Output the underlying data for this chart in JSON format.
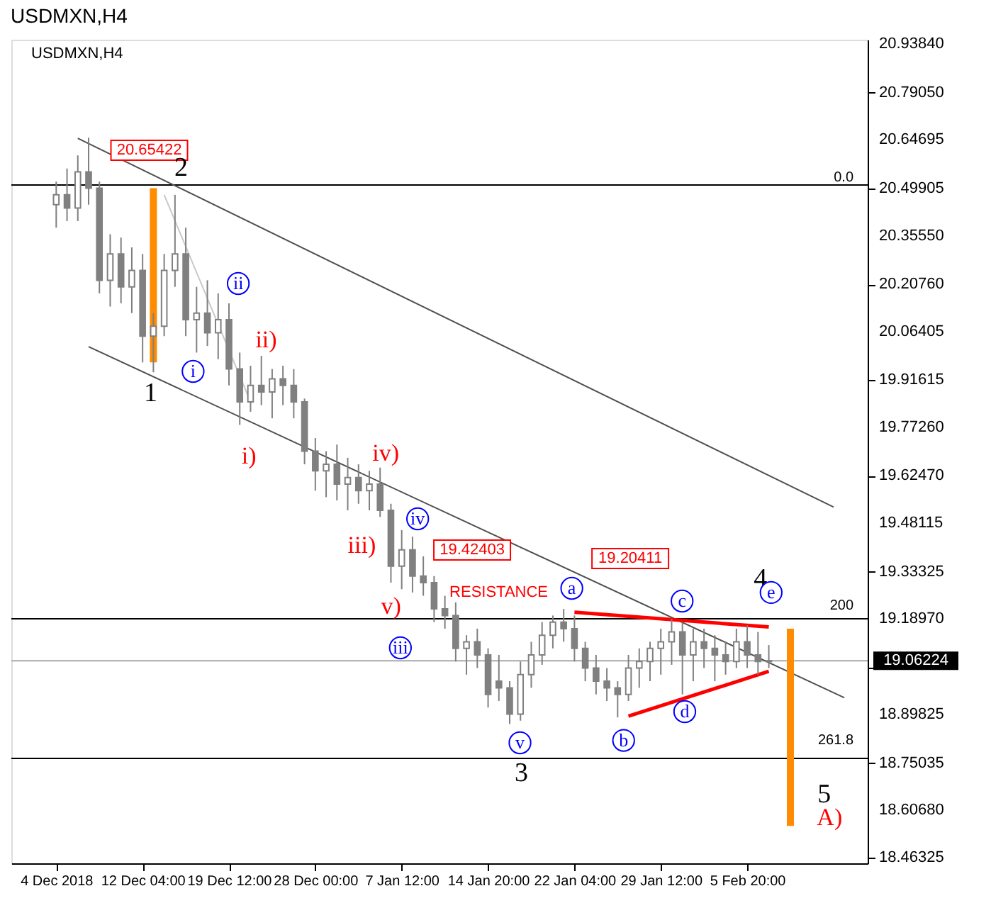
{
  "chart_data": {
    "type": "candlestick",
    "title": "USDMXN,H4",
    "subtitle": "USDMXN,H4",
    "color": "#808080",
    "categories": [
      "4 Dec 2018",
      null,
      null,
      null,
      null,
      null,
      null,
      null,
      "12 Dec 04:00",
      null,
      null,
      null,
      null,
      null,
      null,
      null,
      "19 Dec 12:00",
      null,
      null,
      null,
      null,
      null,
      null,
      null,
      "28 Dec 00:00",
      null,
      null,
      null,
      null,
      null,
      null,
      null,
      "7 Jan 12:00",
      null,
      null,
      null,
      null,
      null,
      null,
      null,
      "14 Jan 20:00",
      null,
      null,
      null,
      null,
      null,
      null,
      null,
      "22 Jan 04:00",
      null,
      null,
      null,
      null,
      null,
      null,
      null,
      "29 Jan 12:00",
      null,
      null,
      null,
      null,
      null,
      null,
      null,
      "5 Feb 20:00",
      null,
      null,
      null,
      null,
      null,
      null,
      null,
      null,
      null,
      null
    ],
    "ohlc": [
      [
        20.45,
        20.52,
        20.38,
        20.48
      ],
      [
        20.48,
        20.56,
        20.4,
        20.44
      ],
      [
        20.44,
        20.6,
        20.4,
        20.55
      ],
      [
        20.55,
        20.654,
        20.45,
        20.5
      ],
      [
        20.5,
        20.52,
        20.18,
        20.22
      ],
      [
        20.22,
        20.36,
        20.14,
        20.3
      ],
      [
        20.3,
        20.35,
        20.15,
        20.2
      ],
      [
        20.2,
        20.32,
        20.12,
        20.25
      ],
      [
        20.25,
        20.3,
        19.97,
        20.05
      ],
      [
        20.05,
        20.12,
        19.94,
        20.08
      ],
      [
        20.08,
        20.3,
        20.05,
        20.25
      ],
      [
        20.25,
        20.48,
        20.2,
        20.3
      ],
      [
        20.3,
        20.38,
        20.05,
        20.1
      ],
      [
        20.1,
        20.2,
        20.0,
        20.12
      ],
      [
        20.12,
        20.22,
        20.02,
        20.06
      ],
      [
        20.06,
        20.18,
        19.98,
        20.1
      ],
      [
        20.1,
        20.15,
        19.9,
        19.95
      ],
      [
        19.95,
        20.0,
        19.78,
        19.85
      ],
      [
        19.85,
        19.96,
        19.82,
        19.9
      ],
      [
        19.9,
        19.99,
        19.84,
        19.88
      ],
      [
        19.88,
        19.95,
        19.8,
        19.92
      ],
      [
        19.92,
        19.96,
        19.84,
        19.9
      ],
      [
        19.9,
        19.95,
        19.8,
        19.85
      ],
      [
        19.85,
        19.86,
        19.66,
        19.7
      ],
      [
        19.7,
        19.74,
        19.58,
        19.64
      ],
      [
        19.64,
        19.7,
        19.56,
        19.66
      ],
      [
        19.66,
        19.72,
        19.55,
        19.6
      ],
      [
        19.6,
        19.68,
        19.52,
        19.62
      ],
      [
        19.62,
        19.66,
        19.54,
        19.58
      ],
      [
        19.58,
        19.64,
        19.52,
        19.6
      ],
      [
        19.6,
        19.65,
        19.5,
        19.52
      ],
      [
        19.52,
        19.54,
        19.3,
        19.35
      ],
      [
        19.35,
        19.46,
        19.28,
        19.4
      ],
      [
        19.4,
        19.44,
        19.27,
        19.32
      ],
      [
        19.32,
        19.38,
        19.26,
        19.3
      ],
      [
        19.3,
        19.32,
        19.18,
        19.22
      ],
      [
        19.22,
        19.26,
        19.16,
        19.2
      ],
      [
        19.2,
        19.24,
        19.06,
        19.1
      ],
      [
        19.1,
        19.14,
        19.02,
        19.12
      ],
      [
        19.12,
        19.16,
        19.04,
        19.08
      ],
      [
        19.08,
        19.1,
        18.92,
        18.96
      ],
      [
        19.0,
        19.08,
        18.94,
        18.98
      ],
      [
        18.98,
        19.0,
        18.87,
        18.9
      ],
      [
        18.9,
        19.06,
        18.88,
        19.02
      ],
      [
        19.02,
        19.12,
        18.98,
        19.08
      ],
      [
        19.08,
        19.18,
        19.05,
        19.14
      ],
      [
        19.14,
        19.2,
        19.1,
        19.18
      ],
      [
        19.18,
        19.22,
        19.12,
        19.16
      ],
      [
        19.16,
        19.2,
        19.06,
        19.1
      ],
      [
        19.1,
        19.12,
        19.0,
        19.04
      ],
      [
        19.04,
        19.08,
        18.96,
        19.0
      ],
      [
        19.0,
        19.04,
        18.94,
        18.98
      ],
      [
        18.98,
        19.0,
        18.89,
        18.96
      ],
      [
        18.96,
        19.08,
        18.94,
        19.04
      ],
      [
        19.04,
        19.1,
        18.98,
        19.06
      ],
      [
        19.06,
        19.12,
        19.0,
        19.1
      ],
      [
        19.1,
        19.16,
        19.02,
        19.12
      ],
      [
        19.12,
        19.19,
        19.05,
        19.15
      ],
      [
        19.15,
        19.18,
        18.96,
        19.08
      ],
      [
        19.08,
        19.16,
        19.0,
        19.12
      ],
      [
        19.12,
        19.16,
        19.04,
        19.1
      ],
      [
        19.1,
        19.14,
        19.0,
        19.08
      ],
      [
        19.08,
        19.12,
        19.02,
        19.06
      ],
      [
        19.06,
        19.16,
        19.04,
        19.12
      ],
      [
        19.12,
        19.17,
        19.04,
        19.08
      ],
      [
        19.08,
        19.15,
        19.02,
        19.06
      ],
      [
        19.06,
        19.11,
        19.04,
        19.06224
      ],
      null,
      null,
      null,
      null,
      null,
      null,
      null,
      null
    ],
    "series": [
      {
        "type": "line",
        "color": "#505050",
        "values": [
          null,
          null,
          20.652,
          null,
          null,
          null,
          null,
          null,
          null,
          null,
          null,
          null,
          null,
          null,
          null,
          null,
          null,
          null,
          null,
          null,
          null,
          null,
          null,
          null,
          null,
          null,
          null,
          null,
          null,
          null,
          null,
          null,
          null,
          null,
          null,
          null,
          null,
          null,
          null,
          null,
          null,
          null,
          null,
          null,
          null,
          null,
          null,
          null,
          null,
          null,
          null,
          null,
          null,
          null,
          null,
          null,
          null,
          null,
          null,
          null,
          null,
          null,
          null,
          null,
          null,
          null,
          null,
          null,
          null,
          null,
          null,
          null,
          19.53,
          null,
          null
        ]
      },
      {
        "type": "line",
        "color": "#505050",
        "values": [
          null,
          null,
          null,
          20.018,
          null,
          null,
          null,
          null,
          null,
          null,
          null,
          null,
          null,
          null,
          null,
          null,
          null,
          null,
          null,
          null,
          null,
          null,
          null,
          null,
          null,
          null,
          null,
          null,
          null,
          null,
          null,
          null,
          null,
          null,
          null,
          null,
          null,
          null,
          null,
          null,
          null,
          null,
          null,
          null,
          null,
          null,
          null,
          null,
          null,
          null,
          null,
          null,
          null,
          null,
          null,
          null,
          null,
          null,
          null,
          null,
          null,
          null,
          null,
          null,
          null,
          null,
          null,
          null,
          null,
          null,
          null,
          null,
          null,
          18.95,
          null
        ]
      },
      {
        "type": "line",
        "color": "#c8c8c8",
        "values": [
          null,
          null,
          null,
          null,
          null,
          null,
          null,
          null,
          null,
          null,
          20.48,
          null,
          null,
          null,
          null,
          null,
          null,
          null,
          19.85,
          null,
          null,
          null,
          null,
          null,
          null,
          null,
          null,
          null,
          null,
          null,
          null,
          null,
          null,
          null,
          null,
          null,
          null,
          null,
          null,
          null,
          null,
          null,
          null,
          null,
          null,
          null,
          null,
          null,
          null,
          null,
          null,
          null,
          null,
          null,
          null,
          null,
          null,
          null,
          null,
          null,
          null,
          null,
          null,
          null,
          null,
          null,
          null,
          null,
          null,
          null,
          null,
          null,
          null,
          null,
          null
        ]
      },
      {
        "type": "line",
        "color": "#ff0000",
        "values": [
          null,
          null,
          null,
          null,
          null,
          null,
          null,
          null,
          null,
          null,
          null,
          null,
          null,
          null,
          null,
          null,
          null,
          null,
          null,
          null,
          null,
          null,
          null,
          null,
          null,
          null,
          null,
          null,
          null,
          null,
          null,
          null,
          null,
          null,
          null,
          null,
          null,
          null,
          null,
          null,
          null,
          null,
          null,
          null,
          null,
          null,
          null,
          null,
          19.21,
          null,
          null,
          null,
          null,
          null,
          null,
          null,
          null,
          null,
          null,
          null,
          null,
          null,
          null,
          null,
          null,
          null,
          19.165,
          null,
          null,
          null,
          null,
          null,
          null,
          null,
          null
        ]
      },
      {
        "type": "line",
        "color": "#ff0000",
        "values": [
          null,
          null,
          null,
          null,
          null,
          null,
          null,
          null,
          null,
          null,
          null,
          null,
          null,
          null,
          null,
          null,
          null,
          null,
          null,
          null,
          null,
          null,
          null,
          null,
          null,
          null,
          null,
          null,
          null,
          null,
          null,
          null,
          null,
          null,
          null,
          null,
          null,
          null,
          null,
          null,
          null,
          null,
          null,
          null,
          null,
          null,
          null,
          null,
          null,
          null,
          null,
          null,
          null,
          18.894,
          null,
          null,
          null,
          null,
          null,
          null,
          null,
          null,
          null,
          null,
          null,
          null,
          19.03,
          null,
          null,
          null,
          null,
          null,
          null,
          null,
          null
        ]
      },
      {
        "type": "bar",
        "color": "#ff8c00",
        "base": [
          null,
          null,
          null,
          null,
          null,
          null,
          null,
          null,
          null,
          19.97,
          null,
          null,
          null,
          null,
          null,
          null,
          null,
          null,
          null,
          null,
          null,
          null,
          null,
          null,
          null,
          null,
          null,
          null,
          null,
          null,
          null,
          null,
          null,
          null,
          null,
          null,
          null,
          null,
          null,
          null,
          null,
          null,
          null,
          null,
          null,
          null,
          null,
          null,
          null,
          null,
          null,
          null,
          null,
          null,
          null,
          null,
          null,
          null,
          null,
          null,
          null,
          null,
          null,
          null,
          null,
          null,
          null,
          null,
          18.56,
          null,
          null,
          null,
          null,
          null,
          null
        ],
        "values": [
          null,
          null,
          null,
          null,
          null,
          null,
          null,
          null,
          null,
          0.53,
          null,
          null,
          null,
          null,
          null,
          null,
          null,
          null,
          null,
          null,
          null,
          null,
          null,
          null,
          null,
          null,
          null,
          null,
          null,
          null,
          null,
          null,
          null,
          null,
          null,
          null,
          null,
          null,
          null,
          null,
          null,
          null,
          null,
          null,
          null,
          null,
          null,
          null,
          null,
          null,
          null,
          null,
          null,
          null,
          null,
          null,
          null,
          null,
          null,
          null,
          null,
          null,
          null,
          null,
          null,
          null,
          null,
          null,
          0.6,
          null,
          null,
          null,
          null,
          null,
          null
        ]
      }
    ],
    "ref_lines": [
      {
        "axis": "y",
        "value": 20.51,
        "color": "#000000"
      },
      {
        "axis": "y",
        "value": 19.19,
        "color": "#000000"
      },
      {
        "axis": "y",
        "value": 18.765,
        "color": "#000000"
      },
      {
        "axis": "y",
        "value": 19.06224,
        "label": "19.06224",
        "color": "#a8a8a8"
      }
    ],
    "annotations": [
      "20.65422",
      "19.42403",
      "19.20411",
      "RESISTANCE",
      "2",
      "1",
      "3",
      "4",
      "5",
      "i)",
      "ii)",
      "iii)",
      "iv)",
      "v)",
      "A)",
      "i",
      "ii",
      "iii",
      "iv",
      "v",
      "a",
      {
        "text": "b",
        "y": 18.82
      },
      "c",
      "d",
      {
        "text": "e",
        "y": 19.27
      },
      "0.0",
      "200",
      "261.8"
    ],
    "ylim": [
      18.446,
      20.952
    ],
    "yticks": [
      {
        "value": 20.9384,
        "label": "20.93840"
      },
      {
        "value": 20.7905,
        "label": "20.79050"
      },
      20.64695,
      20.49905,
      {
        "value": 20.3555,
        "label": "20.35550"
      },
      {
        "value": 20.2076,
        "label": "20.20760"
      },
      20.06405,
      19.91615,
      {
        "value": 19.7726,
        "label": "19.77260"
      },
      {
        "value": 19.6247,
        "label": "19.62470"
      },
      19.48115,
      19.33325,
      {
        "value": 19.1897,
        "label": "19.18970"
      },
      {
        "value": 19.0418,
        "label": null
      },
      18.89825,
      18.75035,
      {
        "value": 18.6068,
        "label": "18.60680"
      },
      18.46325
    ],
    "grid": false
  }
}
